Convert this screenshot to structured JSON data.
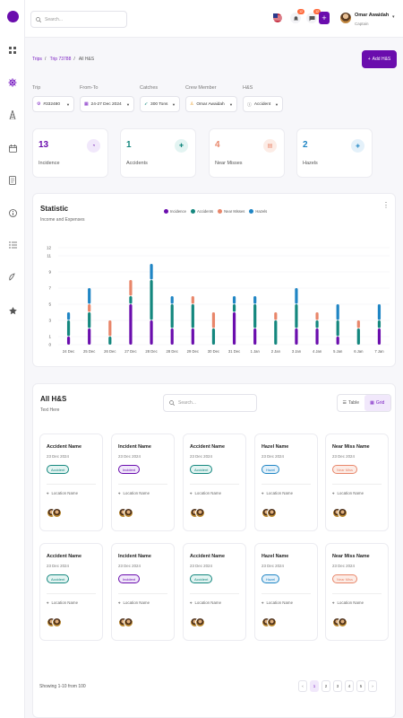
{
  "topbar": {
    "search_placeholder": "Search...",
    "notif_badge_1": "12",
    "notif_badge_2": "12",
    "user_name": "Omar Awaidah",
    "user_role": "Captain"
  },
  "breadcrumb": {
    "items": [
      "Trips",
      "Trip 73788",
      "All H&S"
    ]
  },
  "add_button_label": "Add H&S",
  "filters": [
    {
      "label": "Trip",
      "value": "#332480",
      "icon": "ship-icon"
    },
    {
      "label": "From-To",
      "value": "24-27 Dec 2024",
      "icon": "calendar-icon"
    },
    {
      "label": "Catches",
      "value": "300 Tons",
      "icon": "fish-icon"
    },
    {
      "label": "Crew Member",
      "value": "Omar Awaidah",
      "icon": "person-icon"
    },
    {
      "label": "H&S",
      "value": "Accident",
      "icon": "info-icon"
    }
  ],
  "stats": [
    {
      "value": "13",
      "label": "Incidence",
      "color": "#6a0dad"
    },
    {
      "value": "1",
      "label": "Accidents",
      "color": "#14877e"
    },
    {
      "value": "4",
      "label": "Near Misses",
      "color": "#e8866a"
    },
    {
      "value": "2",
      "label": "Hazels",
      "color": "#1f85c4"
    }
  ],
  "statistic": {
    "title": "Statistic",
    "subtitle": "Income and Expenses"
  },
  "chart_data": {
    "type": "bar",
    "categories": [
      "24 Dec",
      "25 Dec",
      "26 Dec",
      "27 Dec",
      "28 Dec",
      "28 Dec",
      "29 Dec",
      "30 Dec",
      "31 Dec",
      "1 Jan",
      "2 Jan",
      "3 Jan",
      "4 Jan",
      "5 Jan",
      "6 Jan",
      "7 Jan"
    ],
    "series": [
      {
        "name": "Incidence",
        "color": "#6a0dad",
        "values": [
          1,
          2,
          0,
          5,
          3,
          2,
          2,
          0,
          4,
          2,
          0,
          2,
          2,
          1,
          0,
          2
        ]
      },
      {
        "name": "Accidents",
        "color": "#14877e",
        "values": [
          2,
          2,
          1,
          1,
          5,
          3,
          3,
          2,
          1,
          3,
          3,
          3,
          1,
          2,
          2,
          1
        ]
      },
      {
        "name": "Near Misses",
        "color": "#e8866a",
        "values": [
          0,
          1,
          2,
          2,
          0,
          0,
          1,
          2,
          0,
          0,
          1,
          0,
          1,
          0,
          1,
          0
        ]
      },
      {
        "name": "Hazels",
        "color": "#1f85c4",
        "values": [
          1,
          2,
          0,
          0,
          2,
          1,
          0,
          0,
          1,
          1,
          0,
          2,
          0,
          2,
          0,
          2
        ]
      }
    ],
    "yticks": [
      0,
      1,
      3,
      5,
      7,
      9,
      11,
      12
    ],
    "ylim": [
      0,
      12
    ],
    "legend_position": "top"
  },
  "list": {
    "title": "All H&S",
    "subtitle": "Text Here",
    "search_placeholder": "Search...",
    "view_table": "Table",
    "view_grid": "Grid",
    "cards": [
      {
        "title": "Accident Name",
        "date": "23 Dec 2024",
        "tag": "Accident",
        "location": "Location Name"
      },
      {
        "title": "Incident Name",
        "date": "23 Dec 2024",
        "tag": "Incident",
        "location": "Location Name"
      },
      {
        "title": "Accident Name",
        "date": "23 Dec 2024",
        "tag": "Accident",
        "location": "Location Name"
      },
      {
        "title": "Hazel Name",
        "date": "23 Dec 2024",
        "tag": "Hazel",
        "location": "Location Name"
      },
      {
        "title": "Near Miss Name",
        "date": "23 Dec 2024",
        "tag": "Near Miss",
        "location": "Location Name"
      },
      {
        "title": "Accident Name",
        "date": "23 Dec 2024",
        "tag": "Accident",
        "location": "Location Name"
      },
      {
        "title": "Incident Name",
        "date": "23 Dec 2024",
        "tag": "Incident",
        "location": "Location Name"
      },
      {
        "title": "Accident Name",
        "date": "23 Dec 2024",
        "tag": "Accident",
        "location": "Location Name"
      },
      {
        "title": "Hazel Name",
        "date": "23 Dec 2024",
        "tag": "Hazel",
        "location": "Location Name"
      },
      {
        "title": "Near Miss Name",
        "date": "23 Dec 2024",
        "tag": "Near Miss",
        "location": "Location Name"
      }
    ]
  },
  "tag_colors": {
    "Accident": "#14877e",
    "Incident": "#6a0dad",
    "Hazel": "#1f85c4",
    "Near Miss": "#e8866a"
  },
  "pagination": {
    "summary": "Showing 1-10 from 100",
    "pages": [
      "1",
      "2",
      "3",
      "4",
      "5"
    ],
    "current": "1"
  }
}
